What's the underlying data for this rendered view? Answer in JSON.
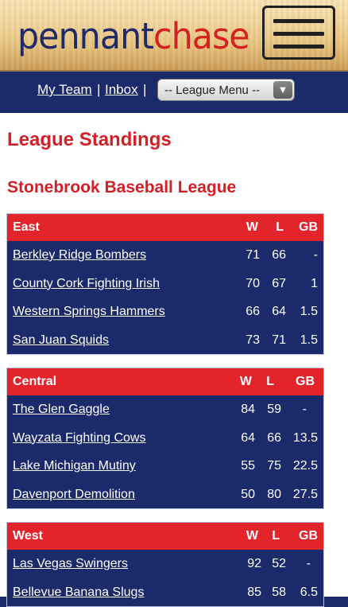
{
  "header": {
    "logo_part1": "pennant",
    "logo_part2": "chase",
    "menu_icon": "hamburger-icon"
  },
  "nav": {
    "my_team": "My Team",
    "sep1": "|",
    "inbox": "Inbox",
    "sep2": "|",
    "league_menu": "-- League Menu --",
    "dropdown_icon": "triangle-down-icon"
  },
  "page": {
    "title": "League Standings",
    "league_name": "Stonebrook Baseball League"
  },
  "colors": {
    "navy": "#1b2a6b",
    "red": "#e3242b",
    "title_red": "#d31f26"
  },
  "divisions": [
    {
      "name": "East",
      "cols": [
        "W",
        "L",
        "GB"
      ],
      "teams": [
        {
          "team": "Berkley Ridge Bombers",
          "w": "71",
          "l": "66",
          "gb": "-"
        },
        {
          "team": "County Cork Fighting Irish",
          "w": "70",
          "l": "67",
          "gb": "1"
        },
        {
          "team": "Western Springs Hammers",
          "w": "66",
          "l": "64",
          "gb": "1.5"
        },
        {
          "team": "San Juan Squids",
          "w": "73",
          "l": "71",
          "gb": "1.5"
        }
      ]
    },
    {
      "name": "Central",
      "cols": [
        "W",
        "L",
        "GB"
      ],
      "teams": [
        {
          "team": "The Glen Gaggle",
          "w": "84",
          "l": "59",
          "gb": "-"
        },
        {
          "team": "Wayzata Fighting Cows",
          "w": "64",
          "l": "66",
          "gb": "13.5"
        },
        {
          "team": "Lake Michigan Mutiny",
          "w": "55",
          "l": "75",
          "gb": "22.5"
        },
        {
          "team": "Davenport Demolition",
          "w": "50",
          "l": "80",
          "gb": "27.5"
        }
      ]
    },
    {
      "name": "West",
      "cols": [
        "W",
        "L",
        "GB"
      ],
      "teams": [
        {
          "team": "Las Vegas Swingers",
          "w": "92",
          "l": "52",
          "gb": "-"
        },
        {
          "team": "Bellevue Banana Slugs",
          "w": "85",
          "l": "58",
          "gb": "6.5"
        }
      ]
    }
  ]
}
